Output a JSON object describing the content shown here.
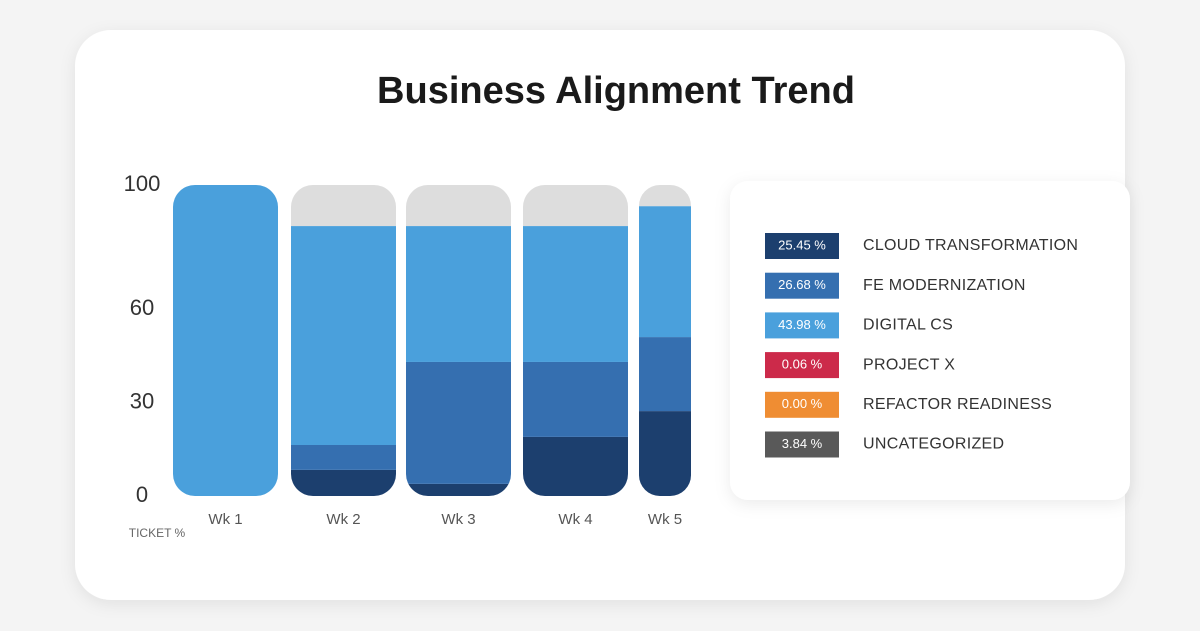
{
  "chart_data": {
    "type": "stacked-bar",
    "title": "Business Alignment Trend",
    "y_label": "TICKET %",
    "categories": [
      "Wk 1",
      "Wk 2",
      "Wk 3",
      "Wk 4",
      "Wk 5"
    ],
    "ylim": [
      0,
      100
    ],
    "yticks": [
      0,
      30,
      60,
      100
    ],
    "grid": false,
    "legend": "right",
    "series": [
      {
        "name": "CLOUD TRANSFORMATION",
        "color": "#1c3f6e",
        "values": [
          0,
          8.4,
          3.9,
          19.0,
          27.3
        ],
        "total": 25.45,
        "total_label": "25.45 %"
      },
      {
        "name": "FE MODERNIZATION",
        "color": "#356fb0",
        "values": [
          0,
          8.0,
          39.2,
          24.1,
          23.8
        ],
        "total": 26.68,
        "total_label": "26.68 %"
      },
      {
        "name": "DIGITAL CS",
        "color": "#4aa0dc",
        "values": [
          100,
          70.4,
          43.7,
          43.7,
          42.1
        ],
        "total": 43.98,
        "total_label": "43.98 %"
      },
      {
        "name": "PROJECT X",
        "color": "#cc2a4a",
        "values": [
          0,
          0,
          0,
          0,
          0
        ],
        "total": 0.06,
        "total_label": "0.06 %"
      },
      {
        "name": "REFACTOR READINESS",
        "color": "#ef8d33",
        "values": [
          0,
          0,
          0,
          0,
          0
        ],
        "total": 0.0,
        "total_label": "0.00 %"
      },
      {
        "name": "UNCATEGORIZED",
        "color": "#595959",
        "bar_color": "#dddddd",
        "values": [
          0,
          13.2,
          13.2,
          13.2,
          6.8
        ],
        "total": 3.84,
        "total_label": "3.84 %"
      }
    ]
  }
}
